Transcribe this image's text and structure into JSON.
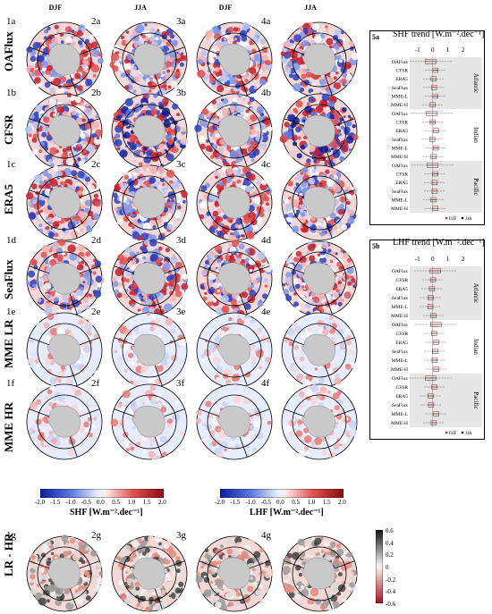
{
  "columns": [
    {
      "id": "col-1",
      "label": "DJF"
    },
    {
      "id": "col-2",
      "label": "JJA"
    },
    {
      "id": "col-3",
      "label": "DJF"
    },
    {
      "id": "col-4",
      "label": "JJA"
    }
  ],
  "rows": [
    {
      "label": "OAFlux",
      "ids": [
        "1a",
        "2a",
        "3a",
        "4a"
      ]
    },
    {
      "label": "CFSR",
      "ids": [
        "1b",
        "2b",
        "3b",
        "4b"
      ]
    },
    {
      "label": "ERA5",
      "ids": [
        "1c",
        "2c",
        "3c",
        "4c"
      ]
    },
    {
      "label": "SeaFlux",
      "ids": [
        "1d",
        "2d",
        "3d",
        "4d"
      ]
    },
    {
      "label": "MME LR",
      "ids": [
        "1e",
        "2e",
        "3e",
        "4e"
      ]
    },
    {
      "label": "MME HR",
      "ids": [
        "1f",
        "2f",
        "3f",
        "4f"
      ]
    },
    {
      "label": "LR - HR",
      "ids": [
        "1g",
        "2g",
        "3g",
        "4g"
      ]
    }
  ],
  "colorbars": {
    "shf": {
      "title": "SHF [W.m⁻².dec⁻¹]",
      "ticks": [
        "-2.0",
        "-1.5",
        "-1.0",
        "-0.5",
        "0.0",
        "0.5",
        "1.0",
        "1.5",
        "2.0"
      ]
    },
    "lhf": {
      "title": "LHF [W.m⁻².dec⁻¹]",
      "ticks": [
        "-2.0",
        "-1.5",
        "-1.0",
        "-0.5",
        "0.0",
        "0.5",
        "1.0",
        "1.5",
        "2.0"
      ]
    },
    "diff": {
      "ticks": [
        "0.6",
        "0.4",
        "0.2",
        "0",
        "-0.2",
        "-0.4",
        "-0.6"
      ]
    }
  },
  "box_5a": {
    "tag": "5a",
    "title": "SHF trend [W.m⁻².dec⁻¹]",
    "xticks": [
      "-1",
      "0",
      "1",
      "2"
    ],
    "datasets": [
      "OAFlux",
      "CFSR",
      "ERA5",
      "SeaFlux",
      "MME-L",
      "MME-H",
      "OAFlux",
      "CFSR",
      "ERA5",
      "SeaFlux",
      "MME-L",
      "MME-H",
      "OAFlux",
      "CFSR",
      "ERA5",
      "SeaFlux",
      "MME-L",
      "MME-H"
    ],
    "basins": [
      "Atlantic",
      "Indian",
      "Pacific"
    ],
    "legend": [
      "DJF",
      "JJA"
    ]
  },
  "box_5b": {
    "tag": "5b",
    "title": "LHF trend [W.m⁻².dec⁻¹]",
    "xticks": [
      "-1",
      "0",
      "1",
      "2"
    ],
    "datasets": [
      "OAFlux",
      "CFSR",
      "ERA5",
      "SeaFlux",
      "MME-L",
      "MME-H",
      "OAFlux",
      "CFSR",
      "ERA5",
      "SeaFlux",
      "MME-L",
      "MME-H",
      "OAFlux",
      "CFSR",
      "ERA5",
      "SeaFlux",
      "MME-L",
      "MME-H"
    ],
    "basins": [
      "Atlantic",
      "Indian",
      "Pacific"
    ],
    "legend": [
      "DJF",
      "JJA"
    ]
  },
  "colors": {
    "warm": "#c8202a",
    "cool": "#2a3fbf",
    "land": "#c9c9c9",
    "shade": "#e6e6e6"
  }
}
